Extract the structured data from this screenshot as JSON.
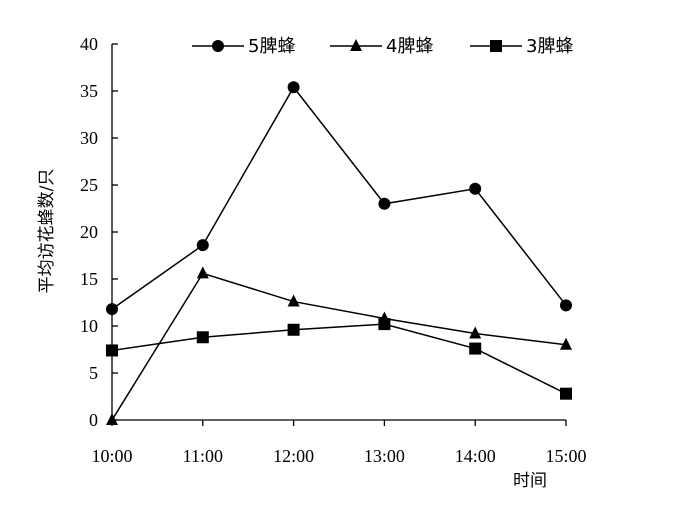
{
  "chart_data": {
    "type": "line",
    "title": "",
    "xlabel": "时间",
    "ylabel": "平均访花蜂数/只",
    "categories": [
      "10:00",
      "11:00",
      "12:00",
      "13:00",
      "14:00",
      "15:00"
    ],
    "ylim": [
      0,
      40
    ],
    "yticks": [
      0,
      5,
      10,
      15,
      20,
      25,
      30,
      35,
      40
    ],
    "grid": false,
    "legend_position": "top",
    "series": [
      {
        "name": "5脾蜂",
        "marker": "circle",
        "values": [
          11.8,
          18.6,
          35.4,
          23.0,
          24.6,
          12.2
        ]
      },
      {
        "name": "4脾蜂",
        "marker": "triangle",
        "values": [
          0,
          15.6,
          12.6,
          10.8,
          9.2,
          8.0
        ]
      },
      {
        "name": "3脾蜂",
        "marker": "square",
        "values": [
          7.4,
          8.8,
          9.6,
          10.2,
          7.6,
          2.8
        ]
      }
    ],
    "colors": {
      "line": "#000000",
      "marker": "#000000"
    }
  }
}
